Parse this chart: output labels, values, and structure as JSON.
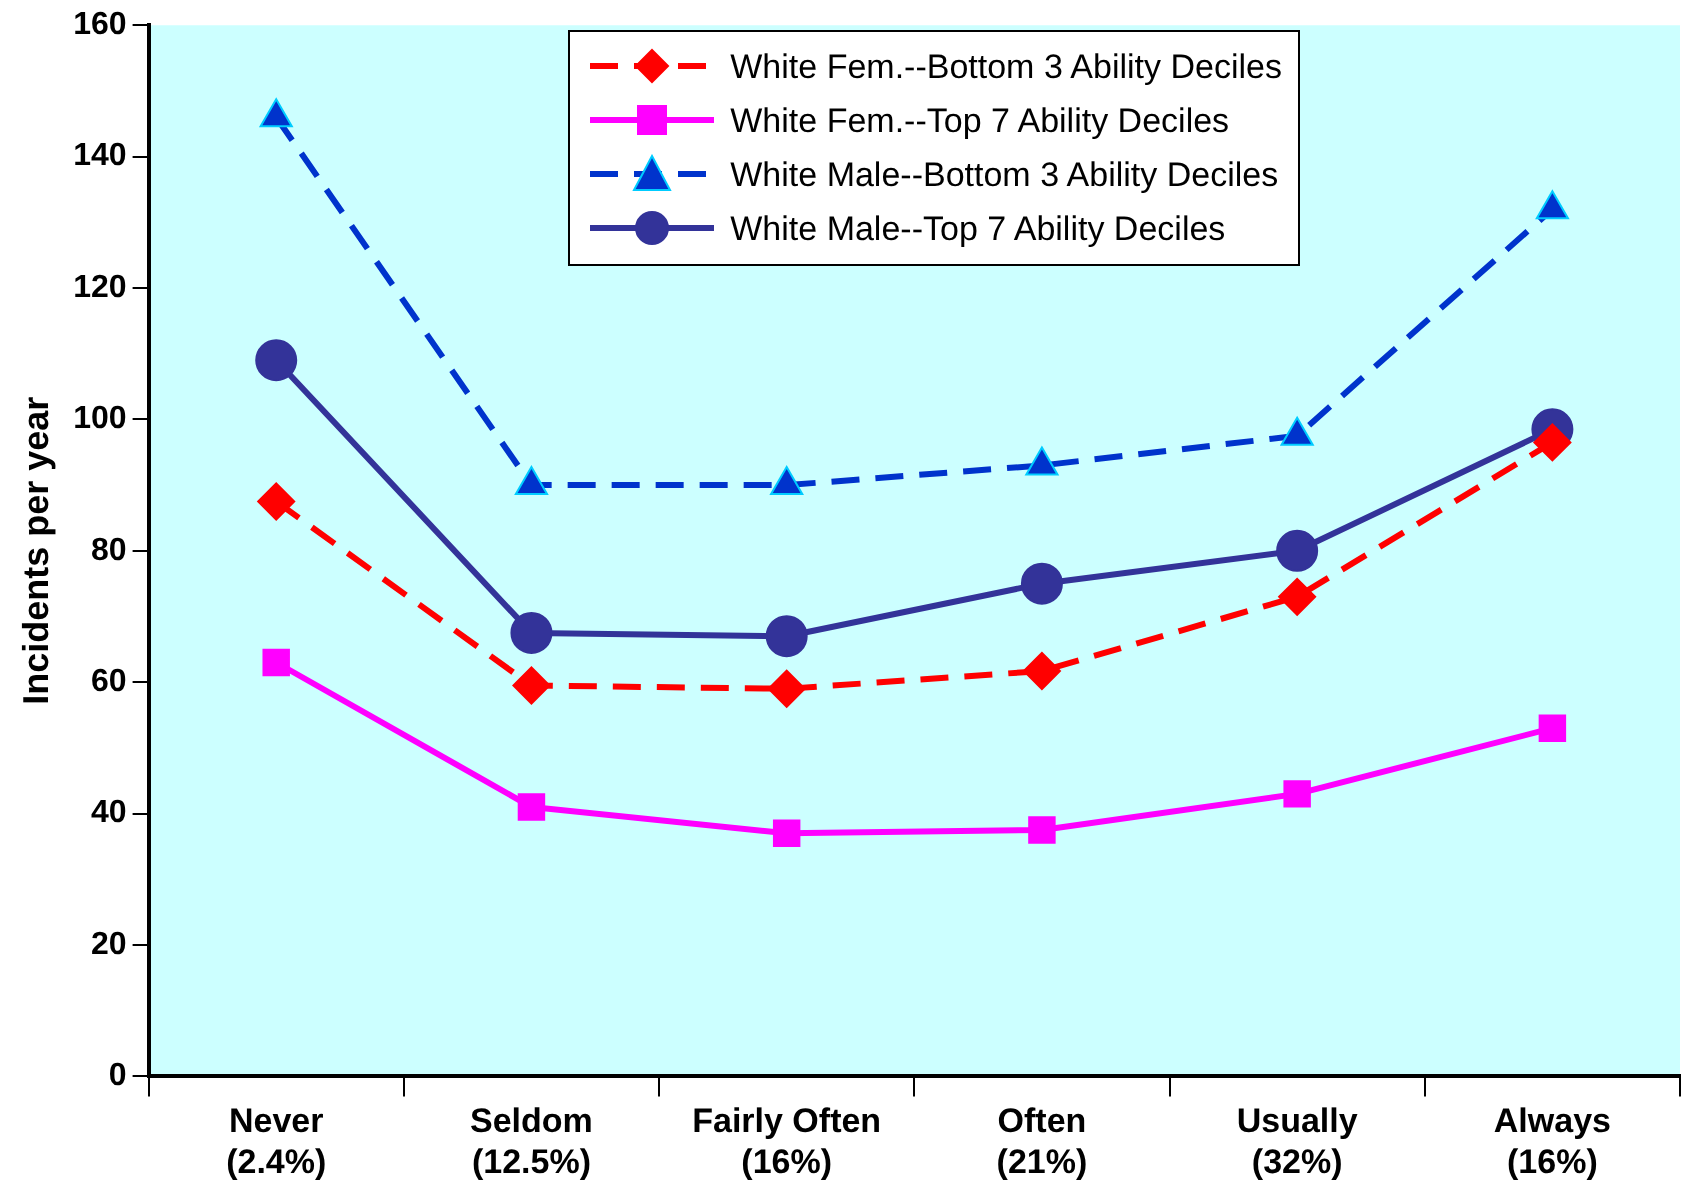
{
  "chart_data": {
    "type": "line",
    "ylabel": "Incidents per year",
    "categories": [
      "Never\n(2.4%)",
      "Seldom\n(12.5%)",
      "Fairly Often\n(16%)",
      "Often\n(21%)",
      "Usually\n(32%)",
      "Always\n(16%)"
    ],
    "series": [
      {
        "name": "White Fem.--Bottom 3 Ability Deciles",
        "color": "#ff0000",
        "marker": "diamond",
        "line_style": "dashed",
        "values": [
          87.5,
          59.5,
          59,
          61.7,
          73,
          96.5
        ]
      },
      {
        "name": "White Fem.--Top 7 Ability Deciles",
        "color": "#ff00ff",
        "marker": "square",
        "line_style": "solid",
        "values": [
          63,
          41,
          37,
          37.5,
          43,
          53
        ]
      },
      {
        "name": "White Male--Bottom 3 Ability Deciles",
        "color": "#0033cc",
        "marker": "triangle",
        "line_style": "dashed",
        "values": [
          146,
          90,
          90,
          93,
          97.5,
          132
        ]
      },
      {
        "name": "White Male--Top 7 Ability Deciles",
        "color": "#333399",
        "marker": "circle",
        "line_style": "solid",
        "values": [
          109,
          67.5,
          67,
          75,
          80,
          98.5
        ]
      }
    ],
    "ylim": [
      0,
      160
    ],
    "yticks": [
      0,
      20,
      40,
      60,
      80,
      100,
      120,
      140,
      160
    ],
    "grid": false,
    "legend": "top"
  }
}
